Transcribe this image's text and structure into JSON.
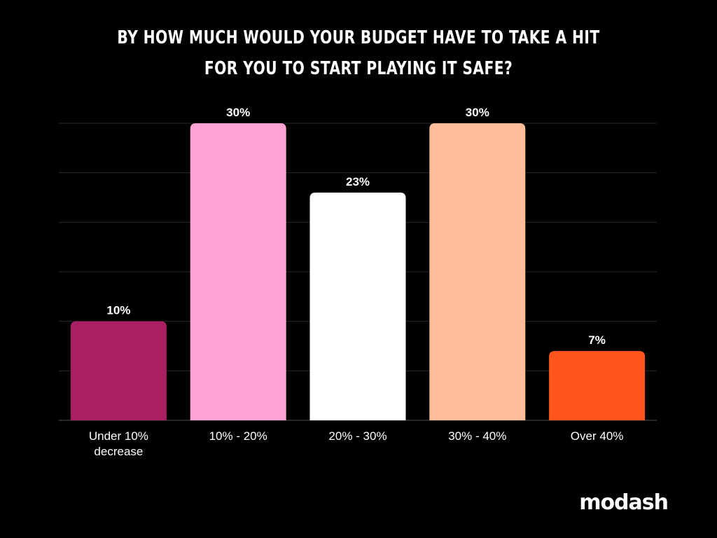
{
  "chart_data": {
    "type": "bar",
    "title": [
      "BY HOW MUCH WOULD YOUR BUDGET HAVE TO TAKE A HIT",
      "FOR YOU TO START PLAYING IT SAFE?"
    ],
    "categories": [
      "Under 10%\ndecrease",
      "10% - 20%",
      "20% - 30%",
      "30% - 40%",
      "Over 40%"
    ],
    "values": [
      10,
      30,
      23,
      30,
      7
    ],
    "data_labels": [
      "10%",
      "30%",
      "23%",
      "30%",
      "7%"
    ],
    "colors": [
      "#AA1F62",
      "#FFA3D4",
      "#FFFFFF",
      "#FFBE99",
      "#FF561B"
    ],
    "ylim": [
      0,
      30
    ],
    "grid": true,
    "xlabel": "",
    "ylabel": ""
  },
  "brand": "modash"
}
